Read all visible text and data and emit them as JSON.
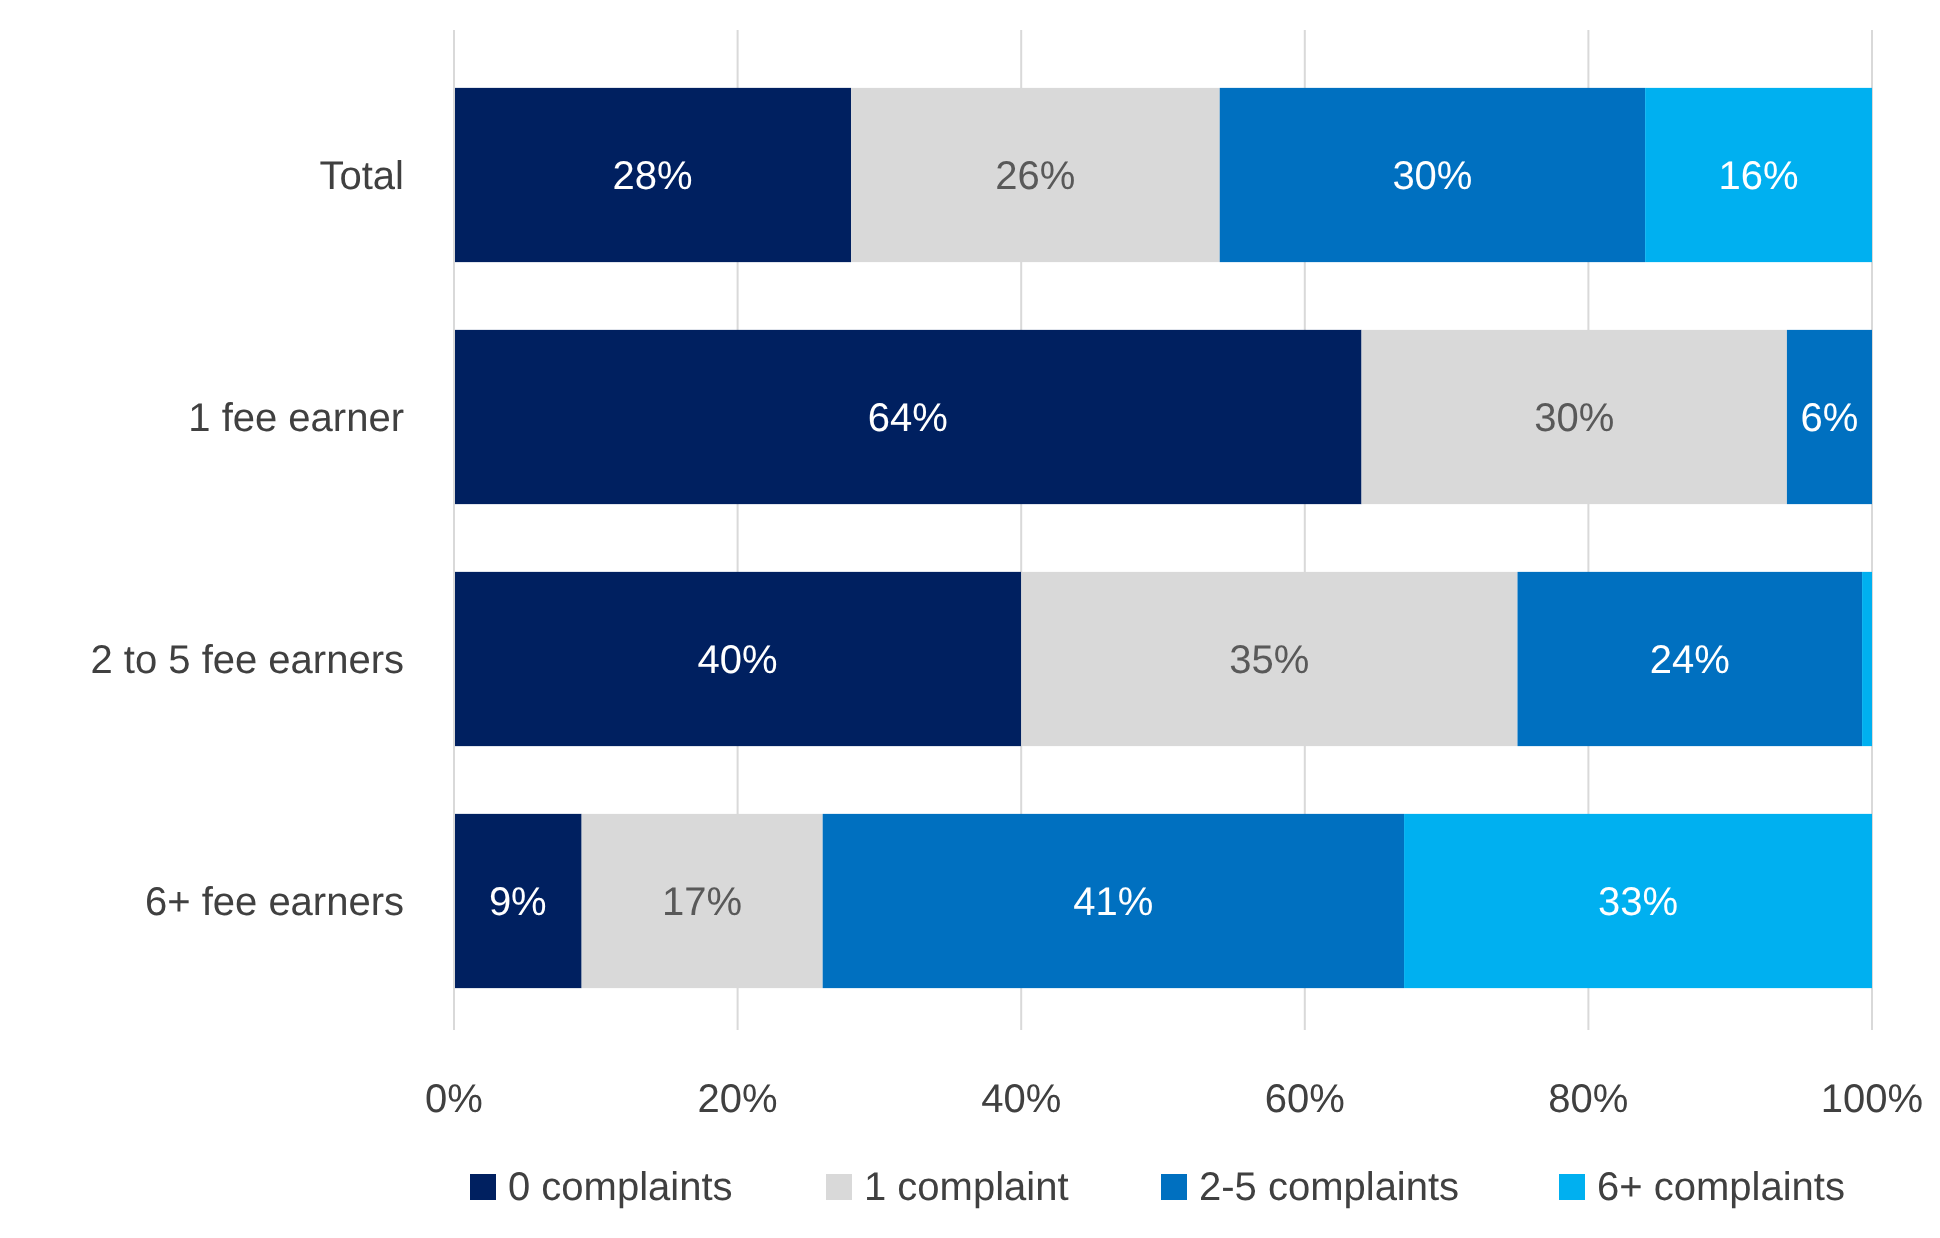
{
  "chart_data": {
    "type": "bar",
    "orientation": "horizontal",
    "stacked": true,
    "categories": [
      "Total",
      "1 fee earner",
      "2 to 5 fee earners",
      "6+ fee earners"
    ],
    "series": [
      {
        "name": "0 complaints",
        "color": "#002060",
        "values": [
          28,
          64,
          40,
          9
        ],
        "value_labels": [
          "28%",
          "64%",
          "40%",
          "9%"
        ]
      },
      {
        "name": "1 complaint",
        "color": "#d9d9d9",
        "values": [
          26,
          30,
          35,
          17
        ],
        "value_labels": [
          "26%",
          "30%",
          "35%",
          "17%"
        ]
      },
      {
        "name": "2-5 complaints",
        "color": "#0070c0",
        "values": [
          30,
          6,
          24.3,
          41
        ],
        "value_labels": [
          "30%",
          "6%",
          "24%",
          "41%"
        ]
      },
      {
        "name": "6+ complaints",
        "color": "#00b0f0",
        "values": [
          16,
          0,
          0.7,
          33
        ],
        "value_labels": [
          "16%",
          null,
          null,
          "33%"
        ]
      }
    ],
    "xlim": [
      0,
      100
    ],
    "xticks": [
      {
        "value": 0,
        "label": "0%"
      },
      {
        "value": 20,
        "label": "20%"
      },
      {
        "value": 40,
        "label": "40%"
      },
      {
        "value": 60,
        "label": "60%"
      },
      {
        "value": 80,
        "label": "80%"
      },
      {
        "value": 100,
        "label": "100%"
      }
    ],
    "grid": "x",
    "legend": "bottom"
  }
}
